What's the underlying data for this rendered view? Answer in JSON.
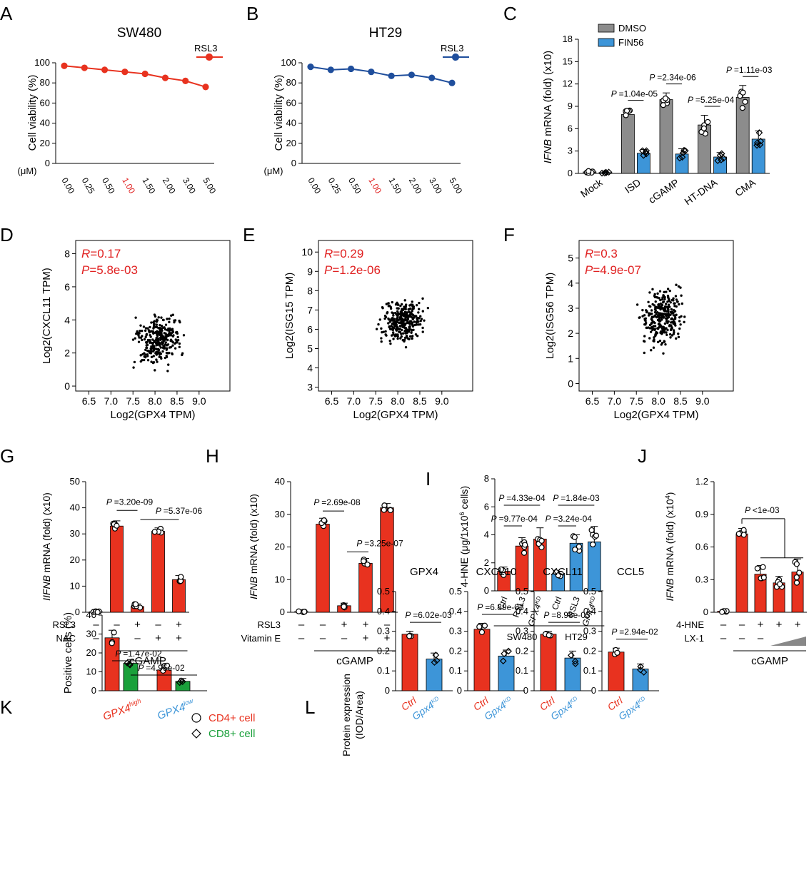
{
  "figure": {
    "colors": {
      "red": "#e8321f",
      "blue": "#1f4e9c",
      "grey": "#8c8c8c",
      "lightblue": "#3d95d8",
      "green": "#1aa03b",
      "sigred": "#e02020",
      "black": "#000000"
    }
  },
  "chart_data": [
    {
      "letter": "A",
      "type": "line",
      "title": "SW480",
      "ylabel": "Cell viability (%)",
      "unit": "(μM)",
      "categories": [
        "0.00",
        "0.25",
        "0.50",
        "1.00",
        "1.50",
        "2.00",
        "3.00",
        "5.00"
      ],
      "highlight": "1.00",
      "ylim": [
        0,
        100
      ],
      "yticks": [
        0,
        20,
        40,
        60,
        80,
        100
      ],
      "series": [
        {
          "name": "RSL3",
          "values": [
            97,
            95,
            93,
            91,
            89,
            85,
            82,
            76
          ]
        }
      ]
    },
    {
      "letter": "B",
      "type": "line",
      "title": "HT29",
      "ylabel": "Cell viability (%)",
      "unit": "(μM)",
      "categories": [
        "0.00",
        "0.25",
        "0.50",
        "1.00",
        "1.50",
        "2.00",
        "3.00",
        "5.00"
      ],
      "highlight": "1.00",
      "ylim": [
        0,
        100
      ],
      "yticks": [
        0,
        20,
        40,
        60,
        80,
        100
      ],
      "series": [
        {
          "name": "RSL3",
          "values": [
            96,
            93,
            94,
            91,
            87,
            88,
            85,
            80
          ]
        }
      ]
    },
    {
      "letter": "C",
      "type": "bar",
      "ylabel_italic": "IFNB",
      "ylabel": " mRNA (fold) (x10)",
      "categories": [
        "Mock",
        "ISD",
        "cGAMP",
        "HT-DNA",
        "CMA"
      ],
      "ylim": [
        0,
        18
      ],
      "yticks": [
        0,
        3,
        6,
        9,
        12,
        15,
        18
      ],
      "series": [
        {
          "name": "DMSO",
          "values": [
            0.2,
            7.9,
            9.9,
            6.5,
            10.2
          ],
          "err": [
            0.2,
            0.7,
            0.9,
            1.3,
            1.6
          ]
        },
        {
          "name": "FIN56",
          "values": [
            0.1,
            2.7,
            2.6,
            2.2,
            4.6
          ],
          "err": [
            0.1,
            0.5,
            0.7,
            0.6,
            1.1
          ]
        }
      ],
      "pvalues": [
        {
          "label": "=1.04e-05",
          "group": 1
        },
        {
          "label": "=2.34e-06",
          "group": 2
        },
        {
          "label": "=5.25e-04",
          "group": 3
        },
        {
          "label": "=1.11e-03",
          "group": 4
        }
      ]
    },
    {
      "letter": "D",
      "type": "scatter",
      "xlabel": "Log2(GPX4 TPM)",
      "ylabel": "Log2(CXCL11 TPM)",
      "xlim": [
        6.2,
        9.7
      ],
      "ylim": [
        -0.3,
        8.8
      ],
      "xticks": [
        6.5,
        7.0,
        7.5,
        8.0,
        8.5,
        9.0
      ],
      "yticks": [
        0,
        2,
        4,
        6,
        8
      ],
      "x_tick_labels": [
        "6.5",
        "7.0",
        "7.5",
        "8.0",
        "8.5",
        "9.0"
      ],
      "r_value": "=0.17",
      "p_value": "=5.8e-03",
      "center": [
        8.1,
        2.8
      ],
      "spread": [
        0.45,
        1.3
      ],
      "n": 300
    },
    {
      "letter": "E",
      "type": "scatter",
      "xlabel": "Log2(GPX4 TPM)",
      "ylabel": "Log2(ISG15 TPM)",
      "xlim": [
        6.2,
        9.7
      ],
      "ylim": [
        2.8,
        10.6
      ],
      "xticks": [
        6.5,
        7.0,
        7.5,
        8.0,
        8.5,
        9.0
      ],
      "yticks": [
        3,
        4,
        5,
        6,
        7,
        8,
        9,
        10
      ],
      "x_tick_labels": [
        "6.5",
        "7.0",
        "7.5",
        "8.0",
        "8.5",
        "9.0"
      ],
      "r_value": "=0.29",
      "p_value": "=1.2e-06",
      "center": [
        8.1,
        6.4
      ],
      "spread": [
        0.45,
        1.0
      ],
      "n": 300
    },
    {
      "letter": "F",
      "type": "scatter",
      "xlabel": "Log2(GPX4 TPM)",
      "ylabel": "Log2(ISG56 TPM)",
      "xlim": [
        6.2,
        9.7
      ],
      "ylim": [
        -0.3,
        5.7
      ],
      "xticks": [
        6.5,
        7.0,
        7.5,
        8.0,
        8.5,
        9.0
      ],
      "yticks": [
        0,
        1,
        2,
        3,
        4,
        5
      ],
      "x_tick_labels": [
        "6.5",
        "7.0",
        "7.5",
        "8.0",
        "8.5",
        "9.0"
      ],
      "r_value": "=0.3",
      "p_value": "=4.9e-07",
      "center": [
        8.1,
        2.6
      ],
      "spread": [
        0.45,
        1.05
      ],
      "n": 300
    },
    {
      "letter": "G",
      "type": "bar",
      "ylabel_italic": "IIFNB",
      "ylabel": " mRNA (fold) (x10)",
      "ylim": [
        0,
        50
      ],
      "yticks": [
        0,
        10,
        20,
        30,
        40,
        50
      ],
      "values": [
        0.2,
        33,
        2.2,
        31,
        12.5
      ],
      "err": [
        0.2,
        2,
        1,
        1.3,
        1.6
      ],
      "colors": [
        "red",
        "red",
        "red",
        "red",
        "red"
      ],
      "rows": [
        {
          "label": "RSL3",
          "signs": [
            "–",
            "–",
            "+",
            "–",
            "+"
          ]
        },
        {
          "label": "NAC",
          "signs": [
            "–",
            "–",
            "–",
            "+",
            "+"
          ]
        }
      ],
      "treatment": "cGAMP",
      "treatment_from": 1,
      "pvalues": [
        {
          "label": "=3.20e-09",
          "from": 1,
          "to": 2
        },
        {
          "label": "=5.37e-06",
          "from": 2,
          "to": 4
        }
      ]
    },
    {
      "letter": "H",
      "type": "bar",
      "ylabel_italic": "IFNB",
      "ylabel": " mRNA (fold) (x10)",
      "ylim": [
        0,
        40
      ],
      "yticks": [
        0,
        10,
        20,
        30,
        40
      ],
      "values": [
        0.2,
        27,
        2,
        15,
        32
      ],
      "err": [
        0.2,
        1.8,
        0.8,
        1.5,
        1.3
      ],
      "colors": [
        "red",
        "red",
        "red",
        "red",
        "red"
      ],
      "rows": [
        {
          "label": "RSL3",
          "signs": [
            "–",
            "–",
            "+",
            "+",
            "–"
          ]
        },
        {
          "label": "Vitamin E",
          "signs": [
            "–",
            "–",
            "–",
            "+",
            "+"
          ]
        }
      ],
      "treatment": "cGAMP",
      "treatment_from": 1,
      "pvalues": [
        {
          "label": "=2.69e-08",
          "from": 1,
          "to": 2
        },
        {
          "label": "=3.25e-07",
          "from": 2,
          "to": 3
        }
      ]
    },
    {
      "letter": "I",
      "type": "bar",
      "ylabel": "4-HNE (μg/1x10",
      "ylabel_sup": "6",
      "ylabel_end": " cells)",
      "ylim": [
        0,
        8
      ],
      "yticks": [
        0,
        2,
        4,
        6,
        8
      ],
      "categories": [
        "Ctrl",
        "RSL3",
        "GPX4",
        "Ctrl",
        "RSL3",
        "GPX4"
      ],
      "category_sup": [
        "",
        "",
        "KD",
        "",
        "",
        "KD"
      ],
      "values": [
        1.4,
        3.2,
        3.7,
        1.2,
        3.4,
        3.5
      ],
      "err": [
        0.3,
        0.6,
        0.8,
        0.2,
        0.6,
        1.1
      ],
      "colors": [
        "red",
        "red",
        "red",
        "lightblue",
        "lightblue",
        "lightblue"
      ],
      "groups": [
        {
          "name": "SW480",
          "from": 0,
          "to": 2
        },
        {
          "name": "HT29",
          "from": 3,
          "to": 5
        }
      ],
      "pvalues": [
        {
          "label": "=4.33e-04",
          "from": 0,
          "to": 2,
          "row": 1
        },
        {
          "label": "=9.77e-04",
          "from": 0,
          "to": 1,
          "row": 0
        },
        {
          "label": "=1.84e-03",
          "from": 3,
          "to": 5,
          "row": 1
        },
        {
          "label": "=3.24e-04",
          "from": 3,
          "to": 4,
          "row": 0
        }
      ]
    },
    {
      "letter": "J",
      "type": "bar",
      "ylabel_italic": "IFNB",
      "ylabel": " mRNA (fold) (x10",
      "ylabel_sup": "4",
      "ylabel_end": ")",
      "ylim": [
        0,
        1.2
      ],
      "yticks": [
        0,
        0.3,
        0.6,
        0.9,
        1.2
      ],
      "ytick_labels": [
        "0",
        "0.3",
        "0.6",
        "0.9",
        "1.2"
      ],
      "values": [
        0.01,
        0.72,
        0.35,
        0.27,
        0.37
      ],
      "err": [
        0.01,
        0.05,
        0.08,
        0.06,
        0.12
      ],
      "colors": [
        "red",
        "red",
        "red",
        "red",
        "red"
      ],
      "rows": [
        {
          "label": "4-HNE",
          "signs": [
            "–",
            "–",
            "+",
            "+",
            "+"
          ]
        },
        {
          "label": "LX-1",
          "signs": [
            "–",
            "–",
            "–",
            "",
            ""
          ]
        }
      ],
      "treatment": "cGAMP",
      "treatment_from": 1,
      "pvalues": [
        {
          "label": "<1e-03",
          "from": 1,
          "to": 4
        }
      ]
    },
    {
      "letter": "K",
      "type": "bar",
      "ylabel": "Positive cells (%)",
      "ylim": [
        0,
        40
      ],
      "yticks": [
        0,
        10,
        20,
        30,
        40
      ],
      "values": [
        28,
        14.5,
        11,
        5
      ],
      "err": [
        4,
        2,
        3,
        1.5
      ],
      "colors": [
        "red",
        "green",
        "red",
        "green"
      ],
      "xgroups": [
        {
          "name": "GPX4",
          "sup": "high",
          "color": "red"
        },
        {
          "name": "GPX4",
          "sup": "low",
          "color": "lightblue"
        }
      ],
      "legend": [
        {
          "name": "CD4+ cell",
          "color": "red",
          "marker": "circle"
        },
        {
          "name": "CD8+ cell",
          "color": "green",
          "marker": "diamond"
        }
      ],
      "pvalues": [
        {
          "label": "=1.47e-02",
          "from": 0,
          "to": 2
        },
        {
          "label": "=4.95e-02",
          "from": 1,
          "to": 3
        }
      ]
    },
    {
      "letter": "L",
      "type": "bar",
      "ylabel": "Protein expression",
      "ylabel2": "(IOD/Area)",
      "ylim": [
        0,
        0.5
      ],
      "yticks": [
        0,
        0.1,
        0.2,
        0.3,
        0.4,
        0.5
      ],
      "ytick_labels": [
        "0",
        "0.1",
        "0.2",
        "0.3",
        "0.4",
        "0.5"
      ],
      "panels": [
        {
          "title": "GPX4",
          "values": [
            0.285,
            0.16
          ],
          "err": [
            0.015,
            0.03
          ],
          "pvalue": "=6.02e-03"
        },
        {
          "title": "CXCL10",
          "values": [
            0.31,
            0.175
          ],
          "err": [
            0.03,
            0.03
          ],
          "pvalue": "=6.89e-03"
        },
        {
          "title": "CXCL11",
          "values": [
            0.285,
            0.165
          ],
          "err": [
            0.015,
            0.035
          ],
          "pvalue": "=8.98e-03"
        },
        {
          "title": "CCL5",
          "values": [
            0.195,
            0.11
          ],
          "err": [
            0.02,
            0.025
          ],
          "pvalue": "=2.94e-02"
        }
      ],
      "categories": [
        "Ctrl",
        "Gpx4"
      ],
      "category_sup": [
        "",
        "KD"
      ],
      "colors": [
        "red",
        "lightblue"
      ]
    }
  ]
}
